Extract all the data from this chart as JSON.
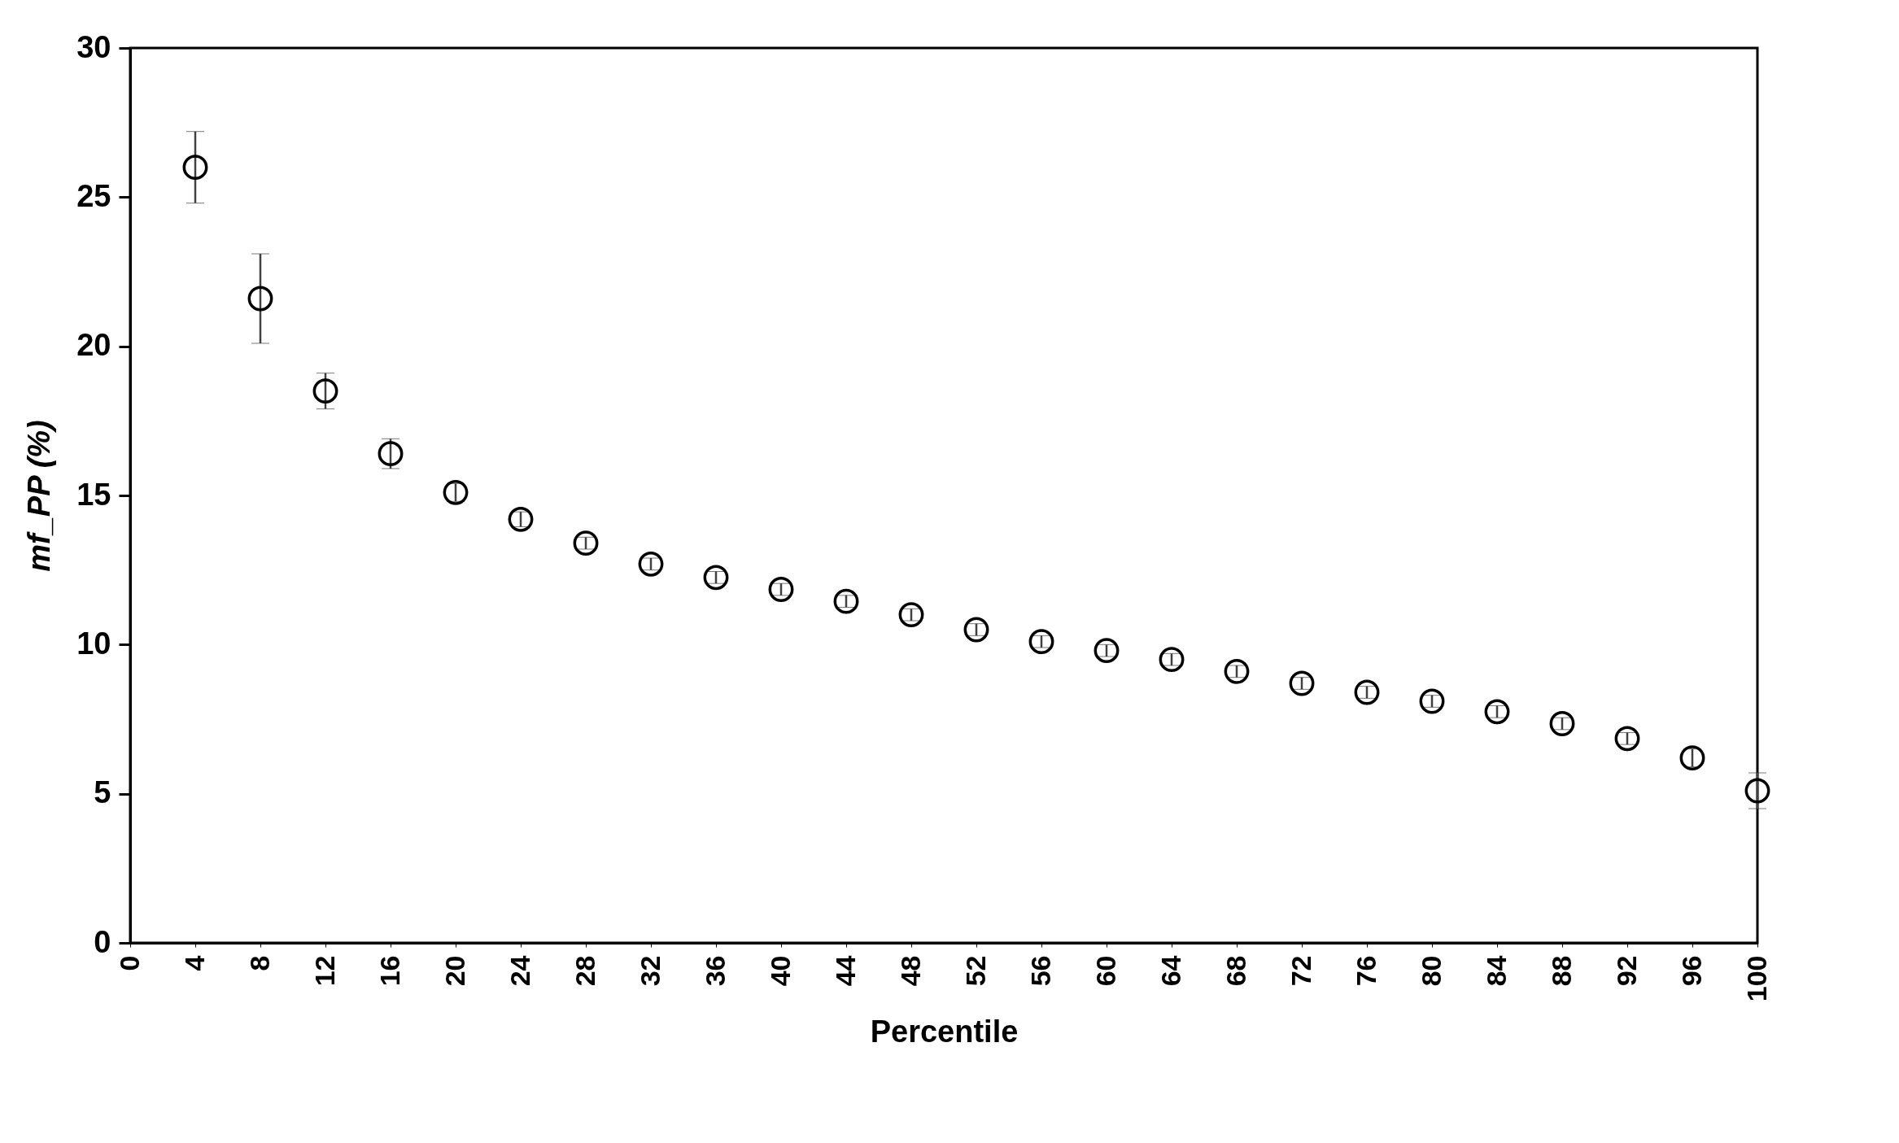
{
  "chart_data": {
    "type": "scatter",
    "xlabel": "Percentile",
    "ylabel": "mf_PP (%)",
    "x": [
      4,
      8,
      12,
      16,
      20,
      24,
      28,
      32,
      36,
      40,
      44,
      48,
      52,
      56,
      60,
      64,
      68,
      72,
      76,
      80,
      84,
      88,
      92,
      96,
      100
    ],
    "series": [
      {
        "color": "#000000",
        "marker": "circle",
        "values": [
          26.0,
          21.6,
          18.5,
          16.4,
          15.1,
          14.2,
          13.4,
          12.7,
          12.25,
          11.85,
          11.45,
          11.0,
          10.5,
          10.1,
          9.8,
          9.5,
          9.1,
          8.7,
          8.4,
          8.1,
          7.75,
          7.35,
          6.85,
          6.2,
          5.1
        ],
        "errors": [
          1.2,
          1.5,
          0.6,
          0.5,
          0.3,
          0.25,
          0.2,
          0.2,
          0.2,
          0.2,
          0.2,
          0.2,
          0.2,
          0.2,
          0.2,
          0.2,
          0.2,
          0.2,
          0.2,
          0.2,
          0.2,
          0.2,
          0.2,
          0.3,
          0.6
        ]
      }
    ],
    "xlim": [
      0,
      100
    ],
    "xticks": [
      0,
      4,
      8,
      12,
      16,
      20,
      24,
      28,
      32,
      36,
      40,
      44,
      48,
      52,
      56,
      60,
      64,
      68,
      72,
      76,
      80,
      84,
      88,
      92,
      96,
      100
    ],
    "ylim": [
      0,
      30
    ],
    "yticks": [
      0,
      5,
      10,
      15,
      20,
      25,
      30
    ],
    "grid": false
  }
}
